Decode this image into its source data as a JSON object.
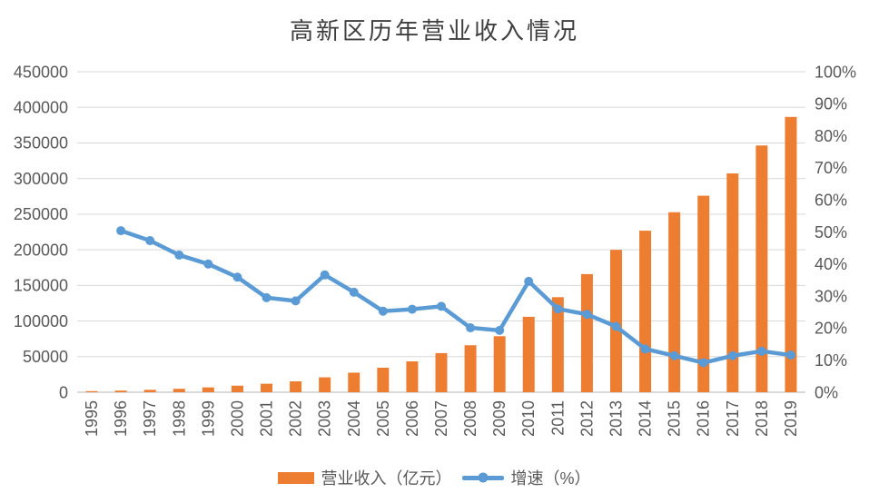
{
  "title": "高新区历年营业收入情况",
  "legend": {
    "items": [
      {
        "label": "营业收入（亿元）"
      },
      {
        "label": "增速（%）"
      }
    ]
  },
  "colors": {
    "bar": "#ED7D31",
    "line": "#5B9BD5",
    "gridline": "#D9D9D9",
    "axis_line": "#D9D9D9",
    "tick_text": "#595959",
    "title_text": "#3F3F3F"
  },
  "chart_data": {
    "type": "bar+line",
    "title": "高新区历年营业收入情况",
    "categories": [
      "1995",
      "1996",
      "1997",
      "1998",
      "1999",
      "2000",
      "2001",
      "2002",
      "2003",
      "2004",
      "2005",
      "2006",
      "2007",
      "2008",
      "2009",
      "2010",
      "2011",
      "2012",
      "2013",
      "2014",
      "2015",
      "2016",
      "2017",
      "2018",
      "2019"
    ],
    "series": [
      {
        "name": "营业收入（亿元）",
        "type": "bar",
        "axis": "left",
        "color": "#ED7D31",
        "values": [
          1529,
          2300,
          3388,
          4839,
          6775,
          9209,
          11928,
          15326,
          20939,
          27466,
          34416,
          43320,
          54925,
          65986,
          78707,
          105917,
          133434,
          165845,
          199902,
          226810,
          252746,
          275906,
          307231,
          346455,
          386523
        ]
      },
      {
        "name": "增速（%）",
        "type": "line",
        "axis": "right",
        "color": "#5B9BD5",
        "values": [
          null,
          50.4,
          47.3,
          42.8,
          40.0,
          35.9,
          29.5,
          28.5,
          36.6,
          31.2,
          25.3,
          25.9,
          26.8,
          20.1,
          19.3,
          34.6,
          26.0,
          24.3,
          20.5,
          13.5,
          11.4,
          9.2,
          11.4,
          12.8,
          11.6
        ]
      }
    ],
    "left_axis": {
      "min": 0,
      "max": 450000,
      "step": 50000,
      "tick_labels": [
        "0",
        "50000",
        "100000",
        "150000",
        "200000",
        "250000",
        "300000",
        "350000",
        "400000",
        "450000"
      ]
    },
    "right_axis": {
      "min": 0,
      "max": 100,
      "step": 10,
      "tick_labels": [
        "0%",
        "10%",
        "20%",
        "30%",
        "40%",
        "50%",
        "60%",
        "70%",
        "80%",
        "90%",
        "100%"
      ]
    },
    "grid": true,
    "legend_position": "bottom",
    "x_tick_rotation": -90
  }
}
